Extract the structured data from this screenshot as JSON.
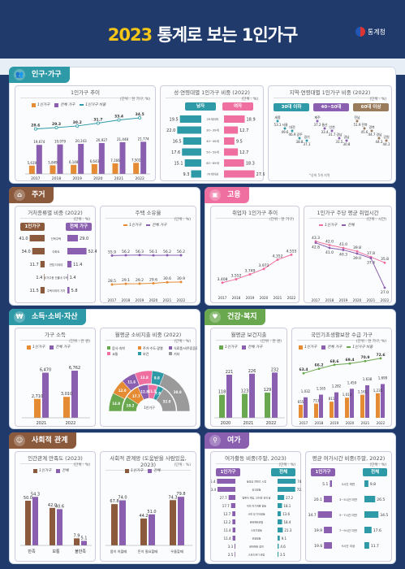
{
  "header": {
    "year": "2023",
    "title": "통계로 보는 1인가구",
    "logo": "통계청"
  },
  "colors": {
    "teal": "#2f9aa7",
    "purple": "#8a5fb0",
    "pink": "#ef6fa0",
    "brown": "#8b5a3c",
    "green": "#6aa84f",
    "orange": "#e48b33",
    "navy": "#1f3a6b"
  },
  "population": {
    "label": "인구·가구",
    "c1": {
      "title": "1인가구 추이",
      "unit": "(단위 : 천 가구, %)",
      "leg": [
        "1인가구",
        "전체 가구",
        "1인가구 비중"
      ],
      "chart_data": {
        "type": "bar",
        "categories": [
          "2017",
          "2018",
          "2019",
          "2020",
          "2021",
          "2022"
        ],
        "series": [
          {
            "name": "1인가구",
            "values": [
              5619,
              5849,
              6148,
              6643,
              7166,
              7502
            ]
          },
          {
            "name": "전체 가구",
            "values": [
              19674,
              19979,
              20343,
              20927,
              21448,
              21774
            ]
          },
          {
            "name": "1인가구 비중",
            "values": [
              28.6,
              29.3,
              30.2,
              31.7,
              33.4,
              34.5
            ]
          }
        ],
        "vlabels": [
          "5,619",
          "5,849",
          "6,148",
          "6,643",
          "7,166",
          "7,502"
        ],
        "tlabels": [
          "19,674",
          "19,979",
          "20,343",
          "20,927",
          "21,448",
          "21,774"
        ],
        "plabels": [
          "28.6",
          "29.3",
          "30.2",
          "31.7",
          "33.4",
          "34.5"
        ]
      }
    },
    "c2": {
      "title": "성·연령대별 1인가구 비중 (2022)",
      "unit": "(단위 : %)",
      "male": "남자",
      "female": "여자",
      "chart_data": {
        "type": "bar",
        "categories": [
          "29세이하",
          "30~39세",
          "40~49세",
          "50~59세",
          "60~69세",
          "70세이상"
        ],
        "series": [
          {
            "name": "남자",
            "values": [
              19.5,
              22.0,
              16.5,
              17.6,
              15.1,
              9.3
            ]
          },
          {
            "name": "여자",
            "values": [
              18.9,
              12.7,
              9.5,
              12.7,
              18.3,
              27.9
            ]
          }
        ]
      }
    },
    "c3": {
      "title": "지역·연령대별 1인가구 비중 (2022)",
      "unit": "(단위 : %)",
      "g": [
        "30대 이하",
        "40~50대",
        "60대 이상"
      ],
      "note": "*상위 5개 지역",
      "r1": [
        [
          "세종",
          "53.1"
        ],
        [
          "서울",
          "49.6"
        ],
        [
          "대전",
          "46.9"
        ],
        [
          "광주",
          "38.8"
        ],
        [
          "경기",
          "37.1"
        ]
      ],
      "r2": [
        [
          "제주",
          "37.2"
        ],
        [
          "울산",
          "33.4"
        ],
        [
          "인천",
          "31.7"
        ],
        [
          "경남",
          "31.5"
        ],
        [
          "경남",
          "30.8"
        ]
      ],
      "r3": [
        [
          "전남",
          "51.9"
        ],
        [
          "전북",
          "45.6"
        ],
        [
          "경북",
          "44.7"
        ],
        [
          "경남",
          "44.3"
        ],
        [
          "강원",
          "44.1"
        ]
      ]
    }
  },
  "housing": {
    "label": "주거",
    "c1": {
      "title": "거처종류별 비중 (2022)",
      "unit": "(단위 : %)",
      "h1": "1인가구",
      "h2": "전체 가구",
      "chart_data": {
        "type": "bar",
        "categories": [
          "단독주택",
          "아파트",
          "연립·다세대",
          "비거주용 건물내 주택",
          "주택이외의 거처"
        ],
        "series": [
          {
            "name": "1인가구",
            "values": [
              41.0,
              34.0,
              11.7,
              1.4,
              11.5
            ]
          },
          {
            "name": "전체 가구",
            "values": [
              29.0,
              52.4,
              11.4,
              1.4,
              5.8
            ]
          }
        ]
      }
    },
    "c2": {
      "title": "주택 소유율",
      "unit": "(단위 : %)",
      "leg": [
        "1인가구",
        "전체 가구"
      ],
      "chart_data": {
        "type": "line",
        "categories": [
          "2017",
          "2018",
          "2019",
          "2020",
          "2021",
          "2022"
        ],
        "series": [
          {
            "name": "1인가구",
            "values": [
              28.5,
              29.1,
              29.2,
              29.6,
              30.6,
              30.9
            ]
          },
          {
            "name": "전체 가구",
            "values": [
              55.9,
              56.2,
              56.3,
              56.1,
              56.2,
              56.2
            ]
          }
        ]
      }
    }
  },
  "employment": {
    "label": "고용",
    "c1": {
      "title": "취업자 1인가구 추이",
      "unit": "(단위 : 천 가구)",
      "chart_data": {
        "type": "line",
        "categories": [
          "2017",
          "2018",
          "2019",
          "2020",
          "2021",
          "2022"
        ],
        "values": [
          3408,
          3552,
          3749,
          3972,
          4352,
          4555
        ],
        "labels": [
          "3,408",
          "3,552",
          "3,749",
          "3,972",
          "4,352",
          "4,555"
        ]
      }
    },
    "c2": {
      "title": "1인가구 주당 평균 취업시간",
      "unit": "(단위 : 시간)",
      "leg": [
        "1인가구",
        "전체"
      ],
      "chart_data": {
        "type": "line",
        "categories": [
          "2017",
          "2018",
          "2019",
          "2020",
          "2021",
          "2022"
        ],
        "series": [
          {
            "name": "1인가구",
            "values": [
              43.3,
              42.0,
              41.0,
              39.8,
              37.8,
              35.8
            ]
          },
          {
            "name": "전체",
            "values": [
              42.8,
              41.0,
              40.3,
              39.0,
              37.4,
              27.0
            ]
          }
        ]
      }
    }
  },
  "income": {
    "label": "소득·소비·자산",
    "c1": {
      "title": "가구 소득",
      "unit": "(단위 : 만 원)",
      "leg": [
        "1인가구",
        "전체 가구"
      ],
      "chart_data": {
        "type": "bar",
        "categories": [
          "2021",
          "2022"
        ],
        "series": [
          {
            "name": "1인가구",
            "values": [
              2710,
              3010
            ]
          },
          {
            "name": "전체 가구",
            "values": [
              6470,
              6762
            ]
          }
        ],
        "labels": [
          [
            "2,710",
            "6,470"
          ],
          [
            "3,010",
            "6,762"
          ]
        ]
      }
    },
    "c2": {
      "title": "월평균 소비지출 비중 (2022)",
      "unit": "(단위 : %)",
      "leg": [
        "음식·숙박",
        "주거·수도·광열",
        "식료품·비주류음료",
        "교통",
        "보건",
        "기타"
      ],
      "inner": "1인가구",
      "outer": "전체 가구",
      "chart_data": {
        "type": "pie",
        "categories": [
          "음식·숙박",
          "주거·수도·광열",
          "식료품·비주류음료",
          "교통",
          "보건",
          "기타"
        ],
        "series": [
          {
            "name": "1인가구",
            "values": [
              18.2,
              17.7,
              12.8,
              11.5,
              7.8,
              32.0
            ]
          },
          {
            "name": "전체 가구",
            "values": [
              14.8,
              12.0,
              11.6,
              13.8,
              9.8,
              38.0
            ]
          }
        ]
      }
    }
  },
  "health": {
    "label": "건강·복지",
    "c1": {
      "title": "월평균 보건지출",
      "unit": "(단위 : 천 원)",
      "leg": [
        "1인가구",
        "전체 가구"
      ],
      "chart_data": {
        "type": "bar",
        "categories": [
          "2020",
          "2021",
          "2022"
        ],
        "series": [
          {
            "name": "1인가구",
            "values": [
              118,
              123,
              129
            ]
          },
          {
            "name": "전체 가구",
            "values": [
              221,
              226,
              232
            ]
          }
        ]
      }
    },
    "c2": {
      "title": "국민기초생활보장 수급 가구",
      "unit": "(단위 : 천 가구, %)",
      "leg": [
        "1인가구",
        "전체 가구",
        "1인가구 비중"
      ],
      "chart_data": {
        "type": "bar",
        "categories": [
          "2017",
          "2018",
          "2019",
          "2020",
          "2021",
          "2022"
        ],
        "series": [
          {
            "name": "1인가구",
            "values": [
              655,
              713,
              811,
              1013,
              1161,
              1235
            ]
          },
          {
            "name": "전체 가구",
            "values": [
              1032,
              1165,
              1282,
              1459,
              1638,
              1699
            ]
          },
          {
            "name": "1인가구 비중",
            "values": [
              63.4,
              66.2,
              68.6,
              69.4,
              70.9,
              72.6
            ]
          }
        ],
        "vlabels": [
          "655",
          "713",
          "811",
          "1,013",
          "1,161",
          "1,235"
        ],
        "tlabels": [
          "1,032",
          "1,165",
          "1,282",
          "1,459",
          "1,638",
          "1,699"
        ]
      }
    }
  },
  "social": {
    "label": "사회적 관계",
    "c1": {
      "title": "인간관계 만족도 (2023)",
      "unit": "(단위 : %)",
      "leg": [
        "1인가구",
        "전체"
      ],
      "chart_data": {
        "type": "bar",
        "categories": [
          "만족",
          "보통",
          "불만족"
        ],
        "series": [
          {
            "name": "1인가구",
            "values": [
              50.0,
              42.0,
              7.9
            ]
          },
          {
            "name": "전체",
            "values": [
              54.3,
              40.6,
              5.1
            ]
          }
        ]
      }
    },
    "c2": {
      "title": "사회적 관계망 (도움받을 사람있음, 2023)",
      "unit": "(단위 : %)",
      "leg": [
        "1인가구",
        "전체"
      ],
      "chart_data": {
        "type": "bar",
        "categories": [
          "몸이 아플때",
          "돈이 필요할때",
          "우울할때"
        ],
        "series": [
          {
            "name": "1인가구",
            "values": [
              67.8,
              44.2,
              74.3
            ]
          },
          {
            "name": "전체",
            "values": [
              74.0,
              51.0,
              79.8
            ]
          }
        ]
      }
    }
  },
  "leisure": {
    "label": "여가",
    "c1": {
      "title": "여가활동 비중(주말, 2023)",
      "unit": "(단위 : %)",
      "h1": "1인가구",
      "h2": "전체",
      "chart_data": {
        "type": "bar",
        "categories": [
          "동영상 콘텐츠 시청",
          "휴식활동",
          "컴퓨터 게임, 인터넷 검색 등",
          "취미·자기개발 활동",
          "사회 및 기타활동",
          "문화예술관람",
          "스포츠활동",
          "관광활동",
          "문화예술 참여",
          "스포츠경기 관람"
        ],
        "series": [
          {
            "name": "1인가구",
            "values": [
              75.4,
              73.4,
              27.7,
              17.7,
              12.7,
              12.2,
              11.4,
              11.4,
              3.3,
              2.5
            ]
          },
          {
            "name": "전체",
            "values": [
              74.2,
              72.4,
              27.2,
              18.1,
              13.6,
              18.4,
              21.3,
              9.1,
              4.6,
              3.5
            ]
          }
        ]
      }
    },
    "c2": {
      "title": "평균 여가시간 비중(주말, 2022)",
      "unit": "(단위 : %)",
      "h1": "1인가구",
      "h2": "전체",
      "chart_data": {
        "type": "bar",
        "categories": [
          "3시간 미만",
          "3~5시간 미만",
          "5~7시간 미만",
          "7~9시간 미만",
          "9시간 이상"
        ],
        "series": [
          {
            "name": "1인가구",
            "values": [
              5.1,
              20.1,
              34.7,
              19.9,
              19.6
            ]
          },
          {
            "name": "전체",
            "values": [
              9.8,
              26.5,
              34.5,
              17.6,
              11.7
            ]
          }
        ]
      }
    }
  }
}
